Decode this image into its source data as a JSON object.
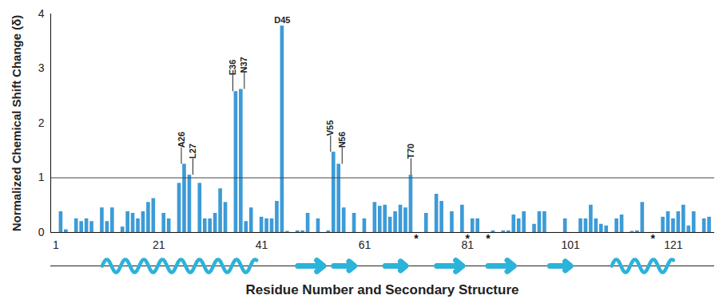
{
  "chart_data": {
    "type": "bar",
    "y_label": "Normalized Chemical Shift Change (δ)",
    "x_label": "Residue Number and Secondary Structure",
    "x": [
      2,
      3,
      4,
      5,
      6,
      7,
      8,
      9,
      10,
      11,
      12,
      13,
      14,
      15,
      16,
      17,
      18,
      19,
      20,
      21,
      22,
      23,
      24,
      25,
      26,
      27,
      28,
      29,
      30,
      31,
      32,
      33,
      34,
      35,
      36,
      37,
      38,
      39,
      40,
      41,
      42,
      43,
      44,
      45,
      46,
      47,
      48,
      49,
      50,
      51,
      52,
      53,
      54,
      55,
      56,
      57,
      58,
      59,
      60,
      61,
      62,
      63,
      64,
      65,
      66,
      67,
      68,
      69,
      70,
      71,
      72,
      73,
      74,
      75,
      76,
      77,
      78,
      79,
      80,
      81,
      82,
      83,
      84,
      85,
      86,
      87,
      88,
      89,
      90,
      91,
      92,
      93,
      94,
      95,
      96,
      97,
      98,
      99,
      100,
      101,
      102,
      103,
      104,
      105,
      106,
      107,
      108,
      109,
      110,
      111,
      112,
      113,
      114,
      115,
      116,
      117,
      118,
      119,
      120,
      121,
      122,
      123,
      124,
      125,
      126,
      127,
      128
    ],
    "values": [
      0.38,
      0.05,
      0,
      0.25,
      0.2,
      0.25,
      0.2,
      0,
      0.45,
      0.2,
      0.45,
      0,
      0.1,
      0.38,
      0.35,
      0.25,
      0.38,
      0.55,
      0.62,
      0,
      0.35,
      0.25,
      0,
      0.9,
      1.25,
      1.05,
      0,
      0.9,
      0.25,
      0.25,
      0.35,
      0.8,
      0.55,
      0,
      2.58,
      2.62,
      0.2,
      0.45,
      0,
      0.28,
      0.25,
      0.25,
      0.57,
      3.78,
      0.02,
      0,
      0.03,
      0.03,
      0.35,
      0,
      0.25,
      0,
      0.03,
      1.47,
      1.25,
      0.45,
      0,
      0.35,
      0,
      0.25,
      0,
      0.55,
      0.48,
      0.5,
      0.28,
      0.38,
      0.5,
      0.45,
      1.05,
      null,
      0,
      0.35,
      0,
      0.7,
      0.57,
      0,
      0.38,
      0,
      0.5,
      null,
      0.25,
      0.25,
      0,
      null,
      0.03,
      0,
      0.03,
      0.03,
      0.32,
      0.25,
      0.38,
      0,
      0.15,
      0.38,
      0.38,
      0,
      0,
      0,
      0.25,
      0,
      0,
      0.25,
      0.25,
      0.5,
      0.25,
      0.15,
      0.12,
      0,
      0.25,
      0.32,
      0,
      0.02,
      0.03,
      0.55,
      0,
      null,
      0,
      0.28,
      0.38,
      0.25,
      0.38,
      0.5,
      0.12,
      0.38,
      0,
      0.25,
      0.28
    ],
    "color": "#3d9bd6",
    "xlim": [
      0,
      129
    ],
    "xticks": [
      1,
      21,
      41,
      61,
      81,
      101,
      121
    ],
    "ylim": [
      0,
      4
    ],
    "yticks": [
      0,
      1,
      2,
      3,
      4
    ],
    "threshold": 1,
    "bar_labels": [
      {
        "x": 26,
        "text": "A26"
      },
      {
        "x": 27,
        "text": "L27"
      },
      {
        "x": 36,
        "text": "E36"
      },
      {
        "x": 37,
        "text": "N37"
      },
      {
        "x": 45,
        "text": "D45"
      },
      {
        "x": 55,
        "text": "V55"
      },
      {
        "x": 56,
        "text": "N56"
      },
      {
        "x": 70,
        "text": "T70"
      }
    ],
    "annotations": [
      {
        "x": 71,
        "text": "*"
      },
      {
        "x": 81,
        "text": "*"
      },
      {
        "x": 85,
        "text": "*"
      },
      {
        "x": 117,
        "text": "*"
      }
    ],
    "secondary_structure": [
      {
        "type": "helix",
        "start": 10,
        "end": 40
      },
      {
        "type": "strand",
        "start": 48,
        "end": 53
      },
      {
        "type": "strand",
        "start": 55,
        "end": 59
      },
      {
        "type": "strand",
        "start": 65,
        "end": 69
      },
      {
        "type": "strand",
        "start": 75,
        "end": 80
      },
      {
        "type": "strand",
        "start": 85,
        "end": 90
      },
      {
        "type": "strand",
        "start": 97,
        "end": 101
      },
      {
        "type": "helix",
        "start": 109,
        "end": 121
      }
    ]
  }
}
